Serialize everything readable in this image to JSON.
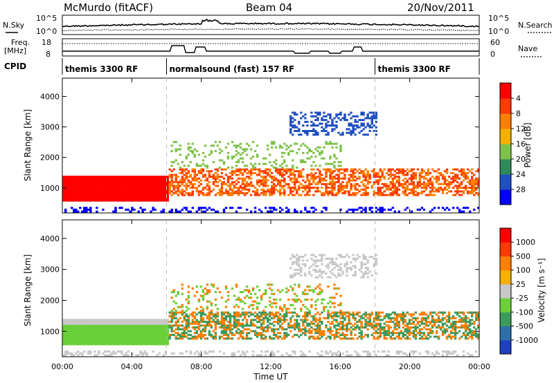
{
  "header": {
    "station": "McMurdo (fitACF)",
    "beam": "Beam 04",
    "date": "20/Nov/2011"
  },
  "noise_panel": {
    "left_label": "N.Sky",
    "right_label": "N.Search",
    "left_ticks": [
      "10^5",
      "10^0"
    ],
    "right_ticks": [
      "10^5",
      "10^0"
    ]
  },
  "freq_panel": {
    "label_line1": "Freq.",
    "label_line2": "[MHz]",
    "left_ticks": [
      "18",
      "8"
    ],
    "right_label": "Nave",
    "right_ticks": [
      "60",
      "0"
    ]
  },
  "cpid": {
    "label": "CPID",
    "segments": [
      {
        "text": "themis 3300 RF",
        "start_hour": 0,
        "end_hour": 6
      },
      {
        "text": "normalsound (fast) 157 RF",
        "start_hour": 6,
        "end_hour": 18
      },
      {
        "text": "themis 3300 RF",
        "start_hour": 18,
        "end_hour": 24
      }
    ]
  },
  "chart_data": [
    {
      "type": "heatmap",
      "name": "power",
      "ylabel": "Slant Range [km]",
      "xlabel": "",
      "x_ticks": [
        "00:00",
        "04:00",
        "08:00",
        "12:00",
        "16:00",
        "20:00",
        "00:00"
      ],
      "x_hours": [
        0,
        4,
        8,
        12,
        16,
        20,
        24
      ],
      "y_ticks": [
        1000,
        2000,
        3000,
        4000
      ],
      "ylim": [
        180,
        4600
      ],
      "colorbar": {
        "label": "Power [dB]",
        "ticks": [
          "4",
          "8",
          "12",
          "16",
          "20",
          "24",
          "28"
        ],
        "colors": [
          "#0000ff",
          "#1f4fc0",
          "#2e8b57",
          "#7fc24a",
          "#f5b000",
          "#ff7f00",
          "#ff3a00",
          "#ff0000"
        ]
      }
    },
    {
      "type": "heatmap",
      "name": "velocity",
      "ylabel": "Slant Range [km]",
      "xlabel": "Time UT",
      "x_ticks": [
        "00:00",
        "04:00",
        "08:00",
        "12:00",
        "16:00",
        "20:00",
        "00:00"
      ],
      "x_hours": [
        0,
        4,
        8,
        12,
        16,
        20,
        24
      ],
      "y_ticks": [
        1000,
        2000,
        3000,
        4000
      ],
      "ylim": [
        180,
        4600
      ],
      "colorbar": {
        "label": "Velocity [m s⁻¹]",
        "ticks": [
          "1000",
          "500",
          "100",
          "25",
          "-25",
          "-100",
          "-500",
          "-1000"
        ],
        "colors": [
          "#1e3fc0",
          "#2e6fa8",
          "#3c9a5a",
          "#6ad03a",
          "#c8c8c8",
          "#f5b000",
          "#ff7f00",
          "#ff3a00",
          "#ff0000"
        ]
      }
    }
  ]
}
